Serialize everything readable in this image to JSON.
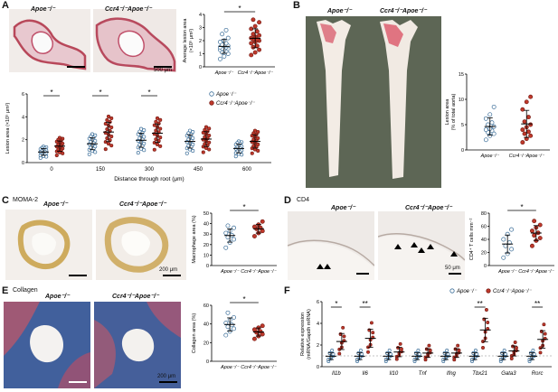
{
  "panels": {
    "A": {
      "label": "A",
      "img_labels": [
        "Apoe⁻/⁻",
        "Ccr4⁻/⁻Apoe⁻/⁻"
      ],
      "scale": "500 μm",
      "avg_ylabel": "Average lesion area",
      "avg_yunit": "(×10⁵ μm²)",
      "avg_sig": "*",
      "avg_xlabels": [
        "Apoe⁻/⁻",
        "Ccr4⁻/⁻Apoe⁻/⁻"
      ],
      "dist_ylabel": "Lesion area (×10⁵ μm²)",
      "dist_xlabel": "Distance through root (μm)",
      "legend": [
        "Apoe⁻/⁻",
        "Ccr4⁻/⁻Apoe⁻/⁻"
      ],
      "dist_sig": [
        "*",
        "*",
        "*"
      ]
    },
    "B": {
      "label": "B",
      "img_labels": [
        "Apoe⁻/⁻",
        "Ccr4⁻/⁻Apoe⁻/⁻"
      ],
      "ylabel": "Lesion area",
      "yunit": "(% of total aorta)",
      "xlabels": [
        "Apoe⁻/⁻",
        "Ccr4⁻/⁻Apoe⁻/⁻"
      ]
    },
    "C": {
      "label": "C",
      "title": "MOMA-2",
      "img_labels": [
        "Apoe⁻/⁻",
        "Ccr4⁻/⁻Apoe⁻/⁻"
      ],
      "scale": "200 μm",
      "ylabel": "Macrophage area (%)",
      "sig": "*",
      "xlabels": [
        "Apoe⁻/⁻",
        "Ccr4⁻/⁻Apoe⁻/⁻"
      ]
    },
    "D": {
      "label": "D",
      "title": "CD4",
      "img_labels": [
        "Apoe⁻/⁻",
        "Ccr4⁻/⁻Apoe⁻/⁻"
      ],
      "scale": "50 μm",
      "ylabel": "CD4⁺ T cells mm⁻²",
      "sig": "*",
      "xlabels": [
        "Apoe⁻/⁻",
        "Ccr4⁻/⁻Apoe⁻/⁻"
      ]
    },
    "E": {
      "label": "E",
      "title": "Collagen",
      "img_labels": [
        "Apoe⁻/⁻",
        "Ccr4⁻/⁻Apoe⁻/⁻"
      ],
      "scale": "200 μm",
      "ylabel": "Collagen area (%)",
      "sig": "*",
      "xlabels": [
        "Apoe⁻/⁻",
        "Ccr4⁻/⁻Apoe⁻/⁻"
      ]
    },
    "F": {
      "label": "F",
      "legend": [
        "Apoe⁻/⁻",
        "Ccr4⁻/⁻Apoe⁻/⁻"
      ],
      "ylabel": "Relative expression",
      "yunit": "(mRNA/Gapdh mRNA)",
      "sig": [
        "*",
        "**",
        "**",
        "**"
      ]
    }
  },
  "colors": {
    "apoe": "#8fb3d1",
    "ccr4": "#c0392b",
    "apoe_edge": "#3b6e99"
  },
  "chart_data": [
    {
      "type": "scatter",
      "panel": "A-avg",
      "categories": [
        "Apoe⁻/⁻",
        "Ccr4⁻/⁻Apoe⁻/⁻"
      ],
      "ylim": [
        0,
        4
      ],
      "yticks": [
        0,
        1,
        2,
        3,
        4
      ],
      "series": [
        {
          "values": [
            0.6,
            0.8,
            1.0,
            1.1,
            1.2,
            1.3,
            1.3,
            1.4,
            1.4,
            1.5,
            1.5,
            1.6,
            1.6,
            1.7,
            1.8,
            1.9,
            2.0,
            2.2,
            2.5,
            2.8
          ],
          "mean": 1.45
        },
        {
          "values": [
            0.9,
            1.1,
            1.3,
            1.5,
            1.6,
            1.8,
            1.9,
            2.0,
            2.1,
            2.1,
            2.2,
            2.3,
            2.4,
            2.5,
            2.7,
            2.9,
            3.1,
            3.4,
            3.6
          ],
          "mean": 2.1
        }
      ]
    },
    {
      "type": "scatter",
      "panel": "A-distance",
      "categories": [
        "0",
        "150",
        "300",
        "450",
        "600"
      ],
      "ylim": [
        0,
        6
      ],
      "yticks": [
        0,
        2,
        4,
        6
      ],
      "series": [
        {
          "means": [
            0.9,
            1.6,
            1.9,
            1.8,
            1.2
          ]
        },
        {
          "means": [
            1.4,
            2.6,
            2.5,
            2.0,
            1.8
          ]
        }
      ]
    },
    {
      "type": "scatter",
      "panel": "B",
      "categories": [
        "Apoe⁻/⁻",
        "Ccr4⁻/⁻Apoe⁻/⁻"
      ],
      "ylim": [
        0,
        15
      ],
      "yticks": [
        0,
        5,
        10,
        15
      ],
      "series": [
        {
          "values": [
            2.0,
            2.8,
            3.2,
            3.5,
            3.8,
            4.0,
            4.2,
            4.6,
            5.0,
            5.4,
            6.2,
            7.0,
            8.5
          ],
          "mean": 4.5
        },
        {
          "values": [
            1.5,
            2.2,
            2.8,
            3.2,
            3.6,
            4.0,
            4.5,
            5.0,
            5.6,
            6.5,
            8.0,
            9.5,
            10.5
          ],
          "mean": 4.8
        }
      ]
    },
    {
      "type": "scatter",
      "panel": "C",
      "categories": [
        "Apoe⁻/⁻",
        "Ccr4⁻/⁻Apoe⁻/⁻"
      ],
      "ylim": [
        0,
        50
      ],
      "yticks": [
        0,
        10,
        20,
        30,
        40,
        50
      ],
      "series": [
        {
          "values": [
            17,
            22,
            25,
            27,
            29,
            31,
            33,
            36,
            38
          ],
          "mean": 29
        },
        {
          "values": [
            28,
            31,
            33,
            35,
            36,
            37,
            39,
            42
          ],
          "mean": 35.5
        }
      ]
    },
    {
      "type": "scatter",
      "panel": "D",
      "categories": [
        "Apoe⁻/⁻",
        "Ccr4⁻/⁻Apoe⁻/⁻"
      ],
      "ylim": [
        0,
        80
      ],
      "yticks": [
        0,
        20,
        40,
        60,
        80
      ],
      "series": [
        {
          "values": [
            12,
            18,
            25,
            30,
            35,
            40,
            48,
            55
          ],
          "mean": 33
        },
        {
          "values": [
            30,
            38,
            42,
            46,
            50,
            53,
            58,
            62,
            68
          ],
          "mean": 50
        }
      ]
    },
    {
      "type": "scatter",
      "panel": "E",
      "categories": [
        "Apoe⁻/⁻",
        "Ccr4⁻/⁻Apoe⁻/⁻"
      ],
      "ylim": [
        0,
        60
      ],
      "yticks": [
        0,
        20,
        40,
        60
      ],
      "series": [
        {
          "values": [
            28,
            32,
            35,
            37,
            39,
            41,
            44,
            47,
            52
          ],
          "mean": 40
        },
        {
          "values": [
            24,
            27,
            29,
            31,
            32,
            34,
            36,
            38
          ],
          "mean": 32
        }
      ]
    },
    {
      "type": "scatter",
      "panel": "F",
      "categories": [
        "Il1b",
        "Il6",
        "Il10",
        "Tnf",
        "Ifng",
        "Tbx21",
        "Gata3",
        "Rorc"
      ],
      "ylim": [
        0,
        6
      ],
      "yticks": [
        0,
        2,
        4,
        6
      ],
      "series": [
        {
          "means": [
            1.0,
            1.0,
            1.0,
            1.0,
            1.0,
            1.0,
            1.0,
            1.0
          ]
        },
        {
          "means": [
            2.4,
            2.7,
            1.4,
            1.3,
            1.3,
            3.5,
            1.5,
            2.6
          ]
        }
      ]
    }
  ]
}
